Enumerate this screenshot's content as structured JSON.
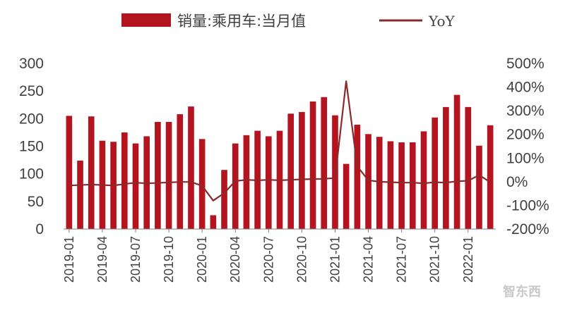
{
  "chart_data": {
    "type": "bar+line",
    "title": "",
    "legend_position": "top",
    "legend": [
      {
        "name": "销量:乘用车:当月值",
        "kind": "bar",
        "color": "#b3141f"
      },
      {
        "name": "YoY",
        "kind": "line",
        "color": "#8b2a2a"
      }
    ],
    "y_left": {
      "min": 0,
      "max": 300,
      "ticks": [
        "0",
        "50",
        "100",
        "150",
        "200",
        "250",
        "300"
      ]
    },
    "y_right": {
      "min": -200,
      "max": 500,
      "ticks": [
        "-200%",
        "-100%",
        "0%",
        "100%",
        "200%",
        "300%",
        "400%",
        "500%"
      ]
    },
    "x_tick_labels": [
      "2019-01",
      "2019-04",
      "2019-07",
      "2019-10",
      "2020-01",
      "2020-04",
      "2020-07",
      "2020-10",
      "2021-01",
      "2021-04",
      "2021-07",
      "2021-10",
      "2022-01"
    ],
    "categories": [
      "2019-01",
      "2019-02",
      "2019-03",
      "2019-04",
      "2019-05",
      "2019-06",
      "2019-07",
      "2019-08",
      "2019-09",
      "2019-10",
      "2019-11",
      "2019-12",
      "2020-01",
      "2020-02",
      "2020-03",
      "2020-04",
      "2020-05",
      "2020-06",
      "2020-07",
      "2020-08",
      "2020-09",
      "2020-10",
      "2020-11",
      "2020-12",
      "2021-01",
      "2021-02",
      "2021-03",
      "2021-04",
      "2021-05",
      "2021-06",
      "2021-07",
      "2021-08",
      "2021-09",
      "2021-10",
      "2021-11",
      "2021-12",
      "2022-01",
      "2022-02",
      "2022-03"
    ],
    "series": [
      {
        "name": "销量:乘用车:当月值",
        "axis": "left",
        "type": "bar",
        "values": [
          205,
          124,
          204,
          160,
          158,
          175,
          155,
          168,
          194,
          194,
          208,
          222,
          163,
          25,
          107,
          155,
          170,
          178,
          168,
          178,
          209,
          212,
          231,
          239,
          206,
          118,
          189,
          172,
          167,
          159,
          157,
          157,
          177,
          202,
          221,
          243,
          221,
          151,
          188
        ]
      },
      {
        "name": "YoY",
        "axis": "right",
        "type": "line",
        "values": [
          -16,
          -14,
          -12,
          -14,
          -16,
          -10,
          -4,
          -7,
          -5,
          -3,
          -1,
          -1,
          -17,
          -80,
          -48,
          3,
          8,
          6,
          8,
          6,
          8,
          10,
          11,
          12,
          16,
          425,
          65,
          6,
          0,
          -2,
          -4,
          -4,
          -7,
          -2,
          -4,
          2,
          4,
          28,
          -2
        ]
      }
    ],
    "grid": false
  },
  "watermark": "智东西"
}
